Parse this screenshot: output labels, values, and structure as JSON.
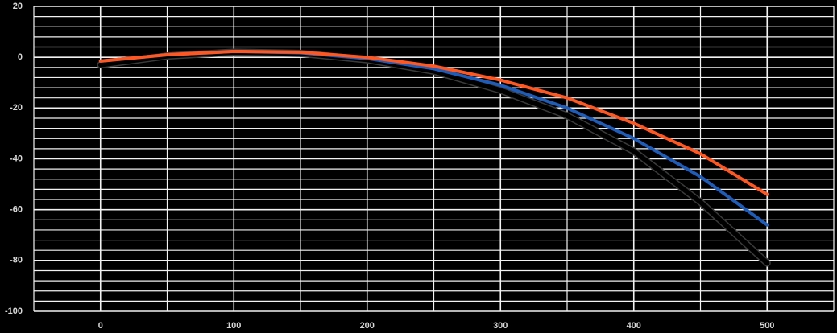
{
  "chart_data": {
    "type": "line",
    "x": [
      0,
      50,
      100,
      150,
      200,
      250,
      300,
      350,
      400,
      450,
      500
    ],
    "series": [
      {
        "color": "#000000",
        "values": [
          -3,
          0.5,
          2,
          1.5,
          -1,
          -5.5,
          -13,
          -23,
          -37,
          -57,
          -81
        ]
      },
      {
        "color": "#1f5cb8",
        "values": [
          -1.5,
          1,
          2.3,
          1.8,
          -0.5,
          -4.5,
          -11,
          -20,
          -32,
          -47,
          -66
        ]
      },
      {
        "color": "#ff5722",
        "values": [
          -1.5,
          1,
          2.3,
          2,
          0,
          -3.5,
          -9,
          -16,
          -26,
          -38,
          -54
        ]
      }
    ],
    "xlim": [
      -50,
      550
    ],
    "xticks": [
      0,
      100,
      200,
      300,
      400,
      500
    ],
    "x_minor_ticks": [
      -50,
      50,
      150,
      250,
      350,
      450,
      550
    ],
    "ylim": [
      -100,
      20
    ],
    "yticks": [
      20,
      0,
      -20,
      -40,
      -60,
      -80,
      -100
    ],
    "y_minor_ticks": [
      16,
      12,
      8,
      4,
      -4,
      -8,
      -12,
      -16,
      -24,
      -28,
      -32,
      -36,
      -44,
      -48,
      -52,
      -56,
      -64,
      -68,
      -72,
      -76,
      -84,
      -88,
      -92,
      -96
    ],
    "grid": true
  }
}
